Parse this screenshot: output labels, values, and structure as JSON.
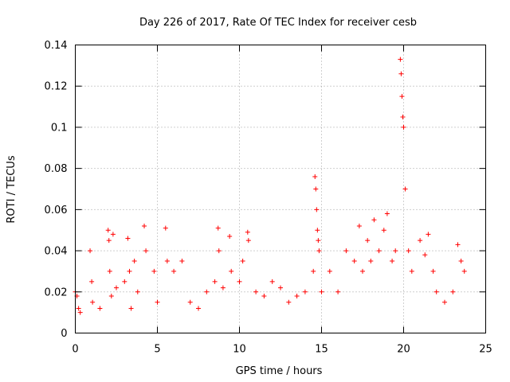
{
  "chart_data": {
    "type": "scatter",
    "title": "Day 226 of 2017, Rate Of TEC Index for receiver cesb",
    "xlabel": "GPS time / hours",
    "ylabel": "ROTI / TECUs",
    "xlim": [
      0,
      25
    ],
    "ylim": [
      0,
      0.14
    ],
    "x_ticks": [
      0,
      5,
      10,
      15,
      20,
      25
    ],
    "x_tick_labels": [
      "0",
      "5",
      "10",
      "15",
      "20",
      "25"
    ],
    "y_ticks": [
      0,
      0.02,
      0.04,
      0.06,
      0.08,
      0.1,
      0.12,
      0.14
    ],
    "y_tick_labels": [
      "0",
      "0.02",
      "0.04",
      "0.06",
      "0.08",
      "0.1",
      "0.12",
      "0.14"
    ],
    "grid": true,
    "marker": "+",
    "color": "#ff0000",
    "series": [
      {
        "name": "ROTI",
        "x": [
          0.0,
          0.1,
          0.2,
          0.3,
          0.9,
          1.0,
          1.05,
          1.5,
          2.0,
          2.05,
          2.1,
          2.2,
          2.3,
          2.5,
          3.0,
          3.2,
          3.3,
          3.4,
          3.6,
          3.8,
          4.2,
          4.3,
          4.8,
          5.0,
          5.5,
          5.6,
          6.0,
          6.5,
          7.0,
          7.5,
          8.0,
          8.5,
          8.7,
          8.75,
          9.0,
          9.4,
          9.5,
          10.0,
          10.2,
          10.5,
          10.55,
          11.0,
          11.5,
          12.0,
          12.5,
          13.0,
          13.5,
          14.0,
          14.5,
          14.6,
          14.65,
          14.7,
          14.75,
          14.8,
          14.85,
          15.0,
          15.5,
          16.0,
          16.5,
          17.0,
          17.3,
          17.5,
          17.8,
          18.0,
          18.2,
          18.5,
          18.8,
          19.0,
          19.3,
          19.5,
          19.8,
          19.85,
          19.9,
          19.95,
          20.0,
          20.1,
          20.3,
          20.5,
          21.0,
          21.3,
          21.5,
          21.8,
          22.0,
          22.5,
          23.0,
          23.3,
          23.5,
          23.7
        ],
        "y": [
          0.02,
          0.018,
          0.012,
          0.01,
          0.04,
          0.025,
          0.015,
          0.012,
          0.05,
          0.045,
          0.03,
          0.018,
          0.048,
          0.022,
          0.025,
          0.046,
          0.03,
          0.012,
          0.035,
          0.02,
          0.052,
          0.04,
          0.03,
          0.015,
          0.051,
          0.035,
          0.03,
          0.035,
          0.015,
          0.012,
          0.02,
          0.025,
          0.051,
          0.04,
          0.022,
          0.047,
          0.03,
          0.025,
          0.035,
          0.049,
          0.045,
          0.02,
          0.018,
          0.025,
          0.022,
          0.015,
          0.018,
          0.02,
          0.03,
          0.076,
          0.07,
          0.06,
          0.05,
          0.045,
          0.04,
          0.02,
          0.03,
          0.02,
          0.04,
          0.035,
          0.052,
          0.03,
          0.045,
          0.035,
          0.055,
          0.04,
          0.05,
          0.058,
          0.035,
          0.04,
          0.133,
          0.126,
          0.115,
          0.105,
          0.1,
          0.07,
          0.04,
          0.03,
          0.045,
          0.038,
          0.048,
          0.03,
          0.02,
          0.015,
          0.02,
          0.043,
          0.035,
          0.03
        ]
      }
    ]
  }
}
